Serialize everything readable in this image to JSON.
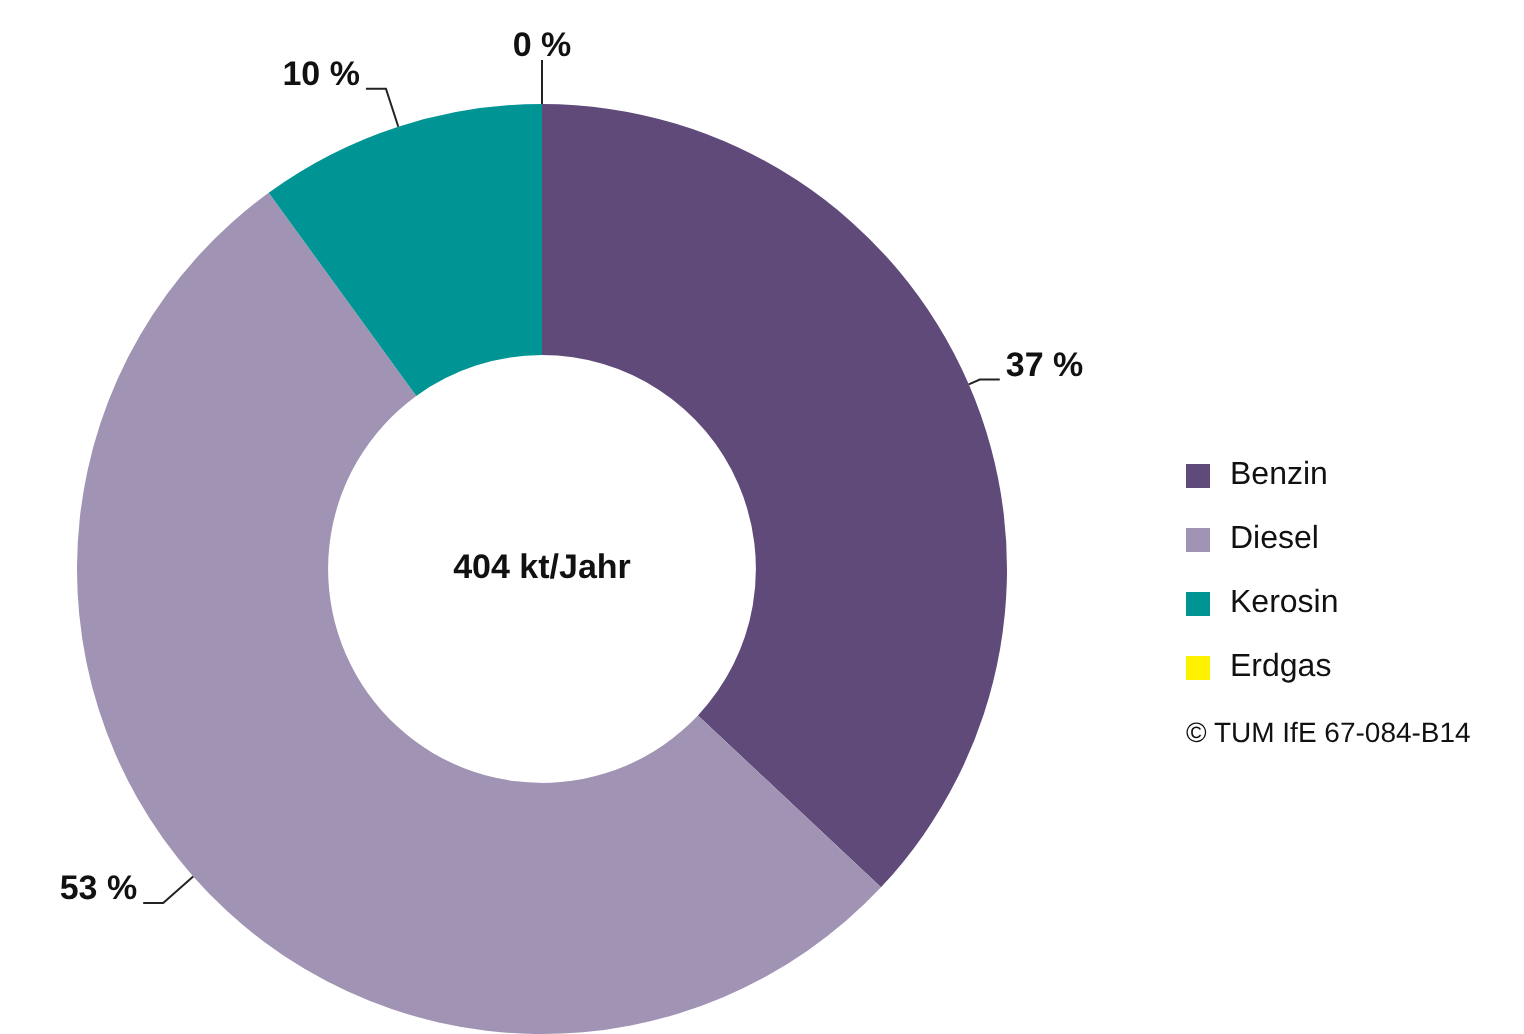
{
  "chart_data": {
    "type": "donut",
    "categories": [
      "Benzin",
      "Diesel",
      "Kerosin",
      "Erdgas"
    ],
    "values": [
      37,
      53,
      10,
      0
    ],
    "colors": [
      "#5f4a7a",
      "#a193b3",
      "#009594",
      "#fff200"
    ],
    "value_labels": [
      "37 %",
      "53 %",
      "10 %",
      "0 %"
    ],
    "legend": "right",
    "annotations": [
      "404 kt/Jahr",
      "© TUM IfE 67-084-B14"
    ]
  }
}
